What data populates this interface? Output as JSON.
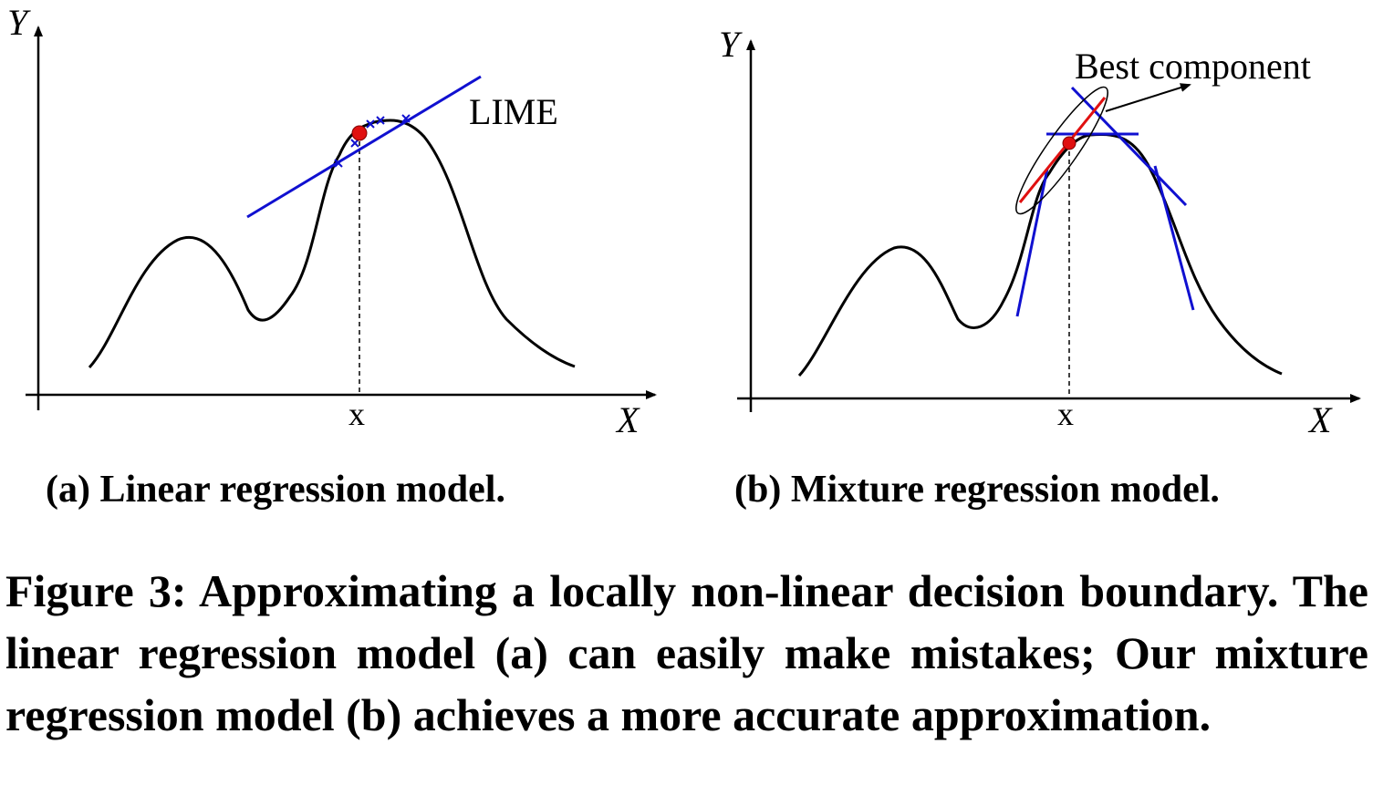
{
  "panels": [
    {
      "y_axis_label": "Y",
      "x_axis_label": "X",
      "x_tick_label": "x",
      "annotation": "LIME",
      "subcaption": "(a) Linear regression model."
    },
    {
      "y_axis_label": "Y",
      "x_axis_label": "X",
      "x_tick_label": "x",
      "annotation": "Best component",
      "subcaption": "(b) Mixture regression model."
    }
  ],
  "caption": "Figure 3: Approximating a locally non-linear decision boundary. The linear regression model (a) can easily make mistakes; Our mixture regression model (b) achieves a more accurate approximation.",
  "colors": {
    "curve": "#000000",
    "fit_line": "#1010d0",
    "point": "#e01010",
    "best_component": "#e01010"
  }
}
